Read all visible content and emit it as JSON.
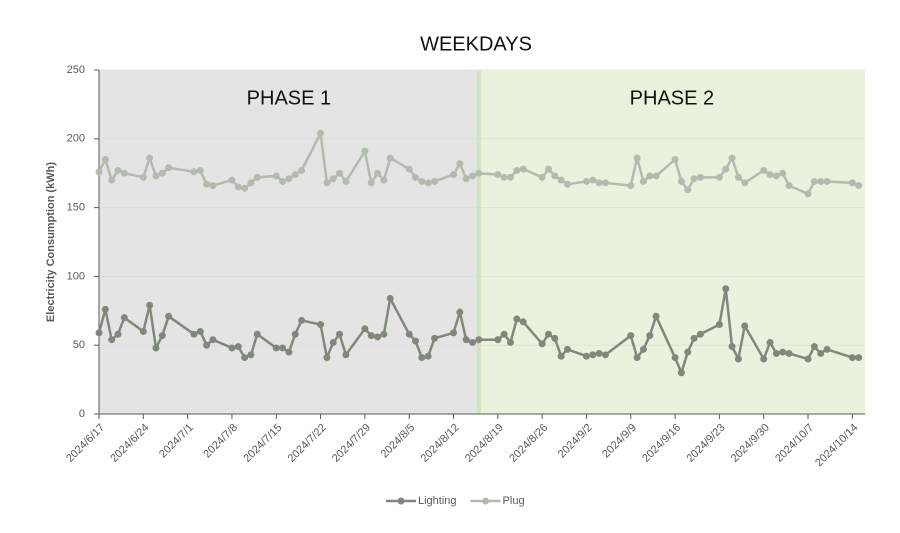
{
  "chart_data": {
    "type": "line",
    "title": "WEEKDAYS",
    "y_label": "Electricity Consumption (kWh)",
    "x": [
      "2024/6/17",
      "2024/6/18",
      "2024/6/19",
      "2024/6/20",
      "2024/6/21",
      "2024/6/24",
      "2024/6/25",
      "2024/6/26",
      "2024/6/27",
      "2024/6/28",
      "2024/7/2",
      "2024/7/3",
      "2024/7/4",
      "2024/7/5",
      "2024/7/8",
      "2024/7/9",
      "2024/7/10",
      "2024/7/11",
      "2024/7/12",
      "2024/7/15",
      "2024/7/16",
      "2024/7/17",
      "2024/7/18",
      "2024/7/19",
      "2024/7/22",
      "2024/7/23",
      "2024/7/24",
      "2024/7/25",
      "2024/7/26",
      "2024/7/29",
      "2024/7/30",
      "2024/7/31",
      "2024/8/1",
      "2024/8/2",
      "2024/8/5",
      "2024/8/6",
      "2024/8/7",
      "2024/8/8",
      "2024/8/9",
      "2024/8/12",
      "2024/8/13",
      "2024/8/14",
      "2024/8/15",
      "2024/8/16",
      "2024/8/19",
      "2024/8/20",
      "2024/8/21",
      "2024/8/22",
      "2024/8/23",
      "2024/8/26",
      "2024/8/27",
      "2024/8/28",
      "2024/8/29",
      "2024/8/30",
      "2024/9/2",
      "2024/9/3",
      "2024/9/4",
      "2024/9/5",
      "2024/9/9",
      "2024/9/10",
      "2024/9/11",
      "2024/9/12",
      "2024/9/13",
      "2024/9/16",
      "2024/9/17",
      "2024/9/18",
      "2024/9/19",
      "2024/9/20",
      "2024/9/23",
      "2024/9/24",
      "2024/9/25",
      "2024/9/26",
      "2024/9/27",
      "2024/9/30",
      "2024/10/1",
      "2024/10/2",
      "2024/10/3",
      "2024/10/4",
      "2024/10/7",
      "2024/10/8",
      "2024/10/9",
      "2024/10/10",
      "2024/10/14",
      "2024/10/15"
    ],
    "series": [
      {
        "name": "Lighting",
        "color": "#7f887b",
        "values": [
          59,
          76,
          54,
          58,
          70,
          60,
          79,
          48,
          57,
          71,
          58,
          60,
          50,
          54,
          48,
          49,
          41,
          43,
          58,
          48,
          48,
          45,
          58,
          68,
          65,
          41,
          52,
          58,
          43,
          62,
          57,
          56,
          58,
          84,
          58,
          53,
          41,
          42,
          55,
          59,
          74,
          54,
          52,
          54,
          54,
          58,
          52,
          69,
          67,
          51,
          58,
          55,
          42,
          47,
          42,
          43,
          44,
          43,
          57,
          41,
          47,
          57,
          71,
          41,
          30,
          45,
          55,
          58,
          65,
          91,
          49,
          40,
          64,
          40,
          52,
          44,
          45,
          44,
          40,
          49,
          44,
          47,
          41,
          41
        ]
      },
      {
        "name": "Plug",
        "color": "#b3bbaf",
        "values": [
          176,
          185,
          170,
          177,
          175,
          172,
          186,
          173,
          175,
          179,
          176,
          177,
          167,
          166,
          170,
          165,
          164,
          168,
          172,
          173,
          169,
          171,
          174,
          177,
          204,
          168,
          171,
          175,
          169,
          191,
          168,
          175,
          170,
          186,
          178,
          172,
          169,
          168,
          169,
          174,
          182,
          171,
          173,
          175,
          174,
          172,
          172,
          177,
          178,
          172,
          178,
          173,
          170,
          167,
          169,
          170,
          168,
          168,
          166,
          186,
          169,
          173,
          173,
          185,
          169,
          163,
          171,
          172,
          172,
          178,
          186,
          172,
          168,
          177,
          174,
          173,
          175,
          166,
          160,
          169,
          169,
          169,
          168,
          166
        ]
      }
    ],
    "xlim": [
      "2024/6/17",
      "2024/10/16"
    ],
    "xticks": [
      "2024/6/17",
      "2024/6/24",
      "2024/7/1",
      "2024/7/8",
      "2024/7/15",
      "2024/7/22",
      "2024/7/29",
      "2024/8/5",
      "2024/8/12",
      "2024/8/19",
      "2024/8/26",
      "2024/9/2",
      "2024/9/9",
      "2024/9/16",
      "2024/9/23",
      "2024/9/30",
      "2024/10/7",
      "2024/10/14"
    ],
    "ylim": [
      0,
      250
    ],
    "yticks": [
      0,
      50,
      100,
      150,
      200,
      250
    ],
    "grid": true,
    "phase_boundary": "2024/8/16",
    "phases": [
      {
        "label": "PHASE 1",
        "color": "#e4e4e4"
      },
      {
        "label": "PHASE 2",
        "color": "#e8f2dc"
      }
    ],
    "legend": "bottom"
  }
}
